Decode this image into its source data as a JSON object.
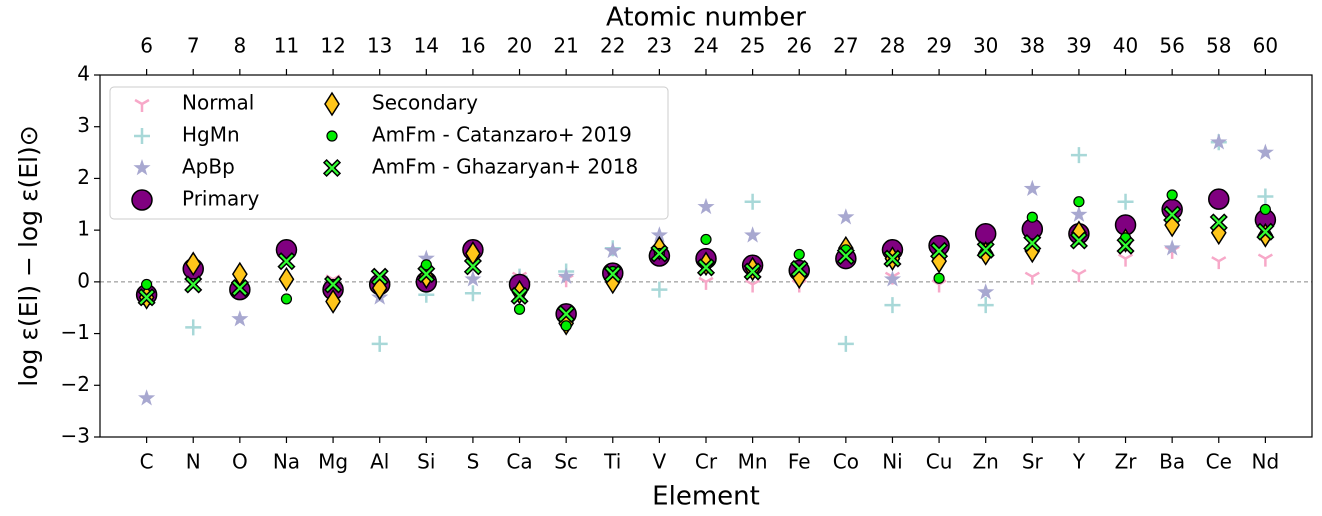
{
  "chart_data": {
    "type": "scatter",
    "x_label": "Element",
    "top_x_label": "Atomic number",
    "y_label": "log ε(El) − log ε(El)⊙",
    "categories": [
      "C",
      "N",
      "O",
      "Na",
      "Mg",
      "Al",
      "Si",
      "S",
      "Ca",
      "Sc",
      "Ti",
      "V",
      "Cr",
      "Mn",
      "Fe",
      "Co",
      "Ni",
      "Cu",
      "Zn",
      "Sr",
      "Y",
      "Zr",
      "Ba",
      "Ce",
      "Nd"
    ],
    "top_categories": [
      "6",
      "7",
      "8",
      "11",
      "12",
      "13",
      "14",
      "16",
      "20",
      "21",
      "22",
      "23",
      "24",
      "25",
      "26",
      "27",
      "28",
      "29",
      "30",
      "38",
      "39",
      "40",
      "56",
      "58",
      "60"
    ],
    "ylim": [
      -3,
      4
    ],
    "yticks": [
      {
        "value": -3,
        "label": "−3"
      },
      {
        "value": -2,
        "label": "−2"
      },
      {
        "value": -1,
        "label": "−1"
      },
      0,
      1,
      2,
      3,
      4
    ],
    "reference_line": 0,
    "legend": "upper left",
    "series": [
      {
        "name": "Normal",
        "color": "#f7a8c8",
        "marker": "tri_down",
        "values": [
          null,
          null,
          null,
          null,
          0.05,
          null,
          null,
          null,
          0.1,
          0.05,
          0,
          null,
          0,
          -0.05,
          -0.05,
          null,
          0.1,
          -0.05,
          null,
          0.1,
          0.15,
          0.45,
          0.6,
          0.4,
          0.45
        ]
      },
      {
        "name": "HgMn",
        "color": "#a8d8d8",
        "marker": "plus",
        "values": [
          null,
          -0.88,
          null,
          null,
          null,
          -1.2,
          -0.25,
          -0.22,
          0.1,
          0.2,
          0.65,
          -0.15,
          null,
          1.55,
          null,
          -1.2,
          -0.45,
          null,
          -0.45,
          null,
          2.45,
          1.55,
          null,
          2.7,
          1.65
        ]
      },
      {
        "name": "ApBp",
        "color": "#a8a8d0",
        "marker": "star",
        "values": [
          -2.25,
          null,
          -0.72,
          null,
          null,
          -0.3,
          0.45,
          0.05,
          0.05,
          0.1,
          0.6,
          0.9,
          1.45,
          0.9,
          null,
          1.25,
          0.05,
          null,
          -0.2,
          1.8,
          1.3,
          null,
          0.65,
          2.7,
          2.5
        ]
      },
      {
        "name": "Primary",
        "color": "#800080",
        "marker": "circle",
        "values": [
          -0.25,
          0.25,
          -0.15,
          0.62,
          -0.15,
          -0.05,
          0,
          0.62,
          -0.05,
          -0.62,
          0.17,
          0.5,
          0.45,
          0.32,
          0.22,
          0.45,
          0.62,
          0.7,
          0.93,
          1.02,
          0.93,
          1.1,
          1.4,
          1.6,
          1.2
        ]
      },
      {
        "name": "Secondary",
        "color": "#ffc61a",
        "marker": "diamond",
        "values": [
          -0.3,
          0.35,
          0.15,
          0.05,
          -0.38,
          -0.12,
          0.1,
          0.55,
          -0.2,
          -0.8,
          0,
          0.65,
          0.35,
          0.25,
          0.1,
          0.65,
          0.45,
          0.4,
          0.55,
          0.6,
          0.95,
          0.8,
          1.1,
          0.95,
          0.9
        ]
      },
      {
        "name": "AmFm - Catanzaro+ 2019",
        "color": "#00ee00",
        "marker": "small_circle",
        "values": [
          -0.05,
          null,
          null,
          -0.33,
          null,
          null,
          0.33,
          null,
          -0.53,
          -0.85,
          0.2,
          0.55,
          0.82,
          null,
          0.53,
          0.62,
          null,
          0.07,
          null,
          1.25,
          1.55,
          0.85,
          1.68,
          null,
          1.4
        ]
      },
      {
        "name": "AmFm - Ghazaryan+ 2018",
        "color": "#33ff33",
        "marker": "x",
        "values": [
          -0.3,
          -0.05,
          -0.12,
          0.4,
          -0.05,
          0.1,
          0.15,
          0.3,
          -0.27,
          -0.62,
          0.15,
          0.55,
          0.28,
          0.2,
          0.25,
          0.5,
          0.45,
          0.6,
          0.62,
          0.75,
          0.8,
          0.7,
          1.3,
          1.15,
          0.97
        ]
      }
    ]
  }
}
